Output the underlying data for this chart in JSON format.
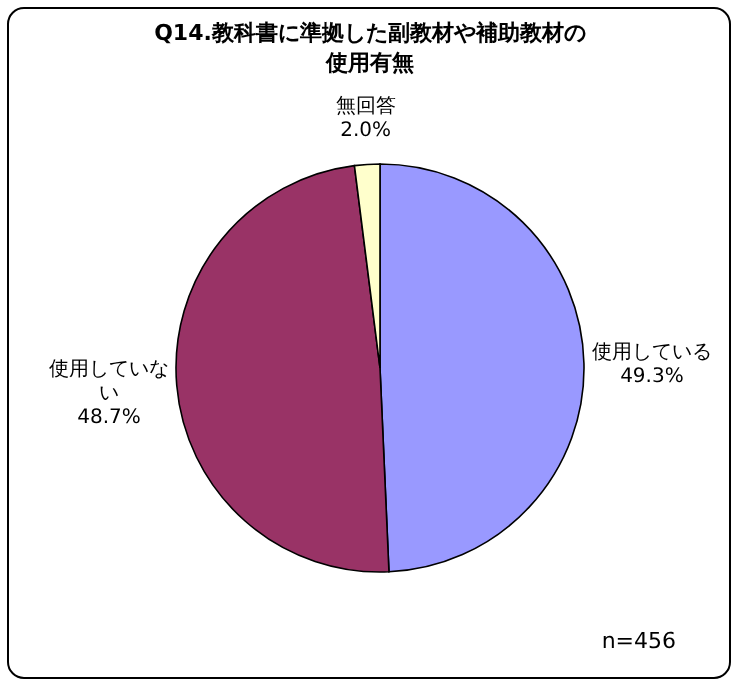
{
  "chart_data": {
    "type": "pie",
    "title": "Q14.教科書に準拠した副教材や補助教材の使用有無",
    "categories": [
      "使用している",
      "使用していない",
      "無回答"
    ],
    "values": [
      49.3,
      48.7,
      2.0
    ],
    "colors": [
      "#9999ff",
      "#993366",
      "#ffffcc"
    ],
    "value_labels": [
      "49.3%",
      "48.7%",
      "2.0%"
    ],
    "legend": false,
    "annotations": [
      "n=456"
    ]
  }
}
